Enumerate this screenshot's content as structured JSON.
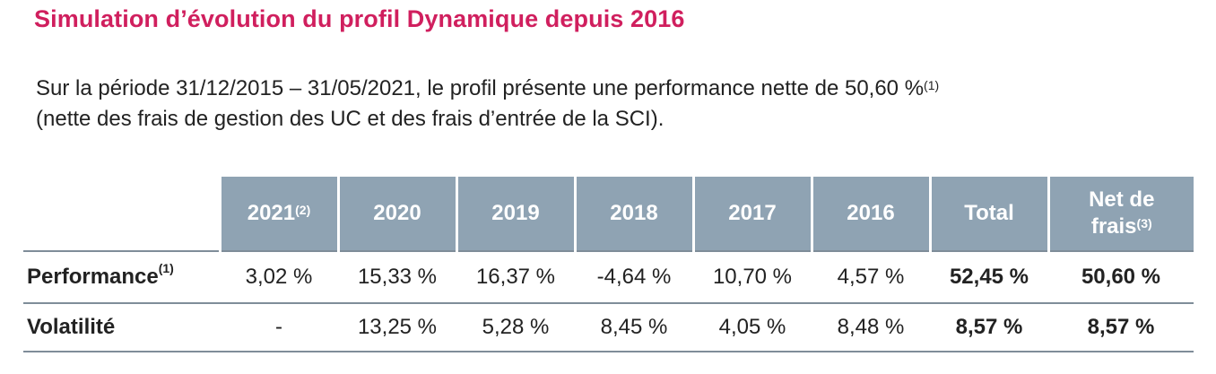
{
  "title": "Simulation d’évolution du profil Dynamique depuis 2016",
  "intro": {
    "line1": "Sur la période 31/12/2015 – 31/05/2021, le profil présente une performance nette de 50,60 %",
    "line1_note": "(1)",
    "line2": "(nette des frais de gestion des UC et des frais d’entrée de la SCI)."
  },
  "table": {
    "headers": [
      {
        "label": "2021",
        "note": "(2)"
      },
      {
        "label": "2020",
        "note": ""
      },
      {
        "label": "2019",
        "note": ""
      },
      {
        "label": "2018",
        "note": ""
      },
      {
        "label": "2017",
        "note": ""
      },
      {
        "label": "2016",
        "note": ""
      },
      {
        "label": "Total",
        "note": ""
      },
      {
        "label_line1": "Net de",
        "label_line2": "frais",
        "note": "(3)"
      }
    ],
    "rows": [
      {
        "label": "Performance",
        "note": "(1)",
        "cells": [
          "3,02 %",
          "15,33 %",
          "16,37 %",
          "-4,64 %",
          "10,70 %",
          "4,57 %",
          "52,45 %",
          "50,60 %"
        ]
      },
      {
        "label": "Volatilité",
        "note": "",
        "cells": [
          "-",
          "13,25 %",
          "5,28 %",
          "8,45 %",
          "4,05 %",
          "8,48 %",
          "8,57 %",
          "8,57 %"
        ]
      }
    ]
  },
  "colors": {
    "title": "#d01f5e",
    "header_bg": "#8fa3b3",
    "rule": "#7f8d99"
  }
}
